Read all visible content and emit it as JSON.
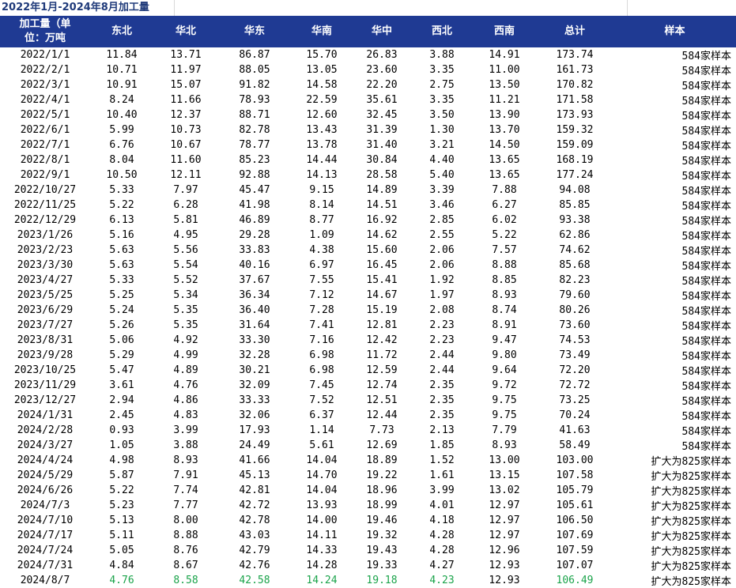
{
  "title": "2022年1月-2024年8月加工量",
  "headers": [
    "加工量（单位：万吨",
    "东北",
    "华北",
    "华东",
    "华南",
    "华中",
    "西北",
    "西南",
    "总计",
    "样本"
  ],
  "header_line1": "加工量（单",
  "header_line2": "位：万吨",
  "rows": [
    [
      "2022/1/1",
      "11.84",
      "13.71",
      "86.87",
      "15.70",
      "26.83",
      "3.88",
      "14.91",
      "173.74",
      "584家样本"
    ],
    [
      "2022/2/1",
      "10.71",
      "11.97",
      "88.05",
      "13.05",
      "23.60",
      "3.35",
      "11.00",
      "161.73",
      "584家样本"
    ],
    [
      "2022/3/1",
      "10.91",
      "15.07",
      "91.82",
      "14.58",
      "22.20",
      "2.75",
      "13.50",
      "170.82",
      "584家样本"
    ],
    [
      "2022/4/1",
      "8.24",
      "11.66",
      "78.93",
      "22.59",
      "35.61",
      "3.35",
      "11.21",
      "171.58",
      "584家样本"
    ],
    [
      "2022/5/1",
      "10.40",
      "12.37",
      "88.71",
      "12.60",
      "32.45",
      "3.50",
      "13.90",
      "173.93",
      "584家样本"
    ],
    [
      "2022/6/1",
      "5.99",
      "10.73",
      "82.78",
      "13.43",
      "31.39",
      "1.30",
      "13.70",
      "159.32",
      "584家样本"
    ],
    [
      "2022/7/1",
      "6.76",
      "10.67",
      "78.77",
      "13.78",
      "31.40",
      "3.21",
      "14.50",
      "159.09",
      "584家样本"
    ],
    [
      "2022/8/1",
      "8.04",
      "11.60",
      "85.23",
      "14.44",
      "30.84",
      "4.40",
      "13.65",
      "168.19",
      "584家样本"
    ],
    [
      "2022/9/1",
      "10.50",
      "12.11",
      "92.88",
      "14.13",
      "28.58",
      "5.40",
      "13.65",
      "177.24",
      "584家样本"
    ],
    [
      "2022/10/27",
      "5.33",
      "7.97",
      "45.47",
      "9.15",
      "14.89",
      "3.39",
      "7.88",
      "94.08",
      "584家样本"
    ],
    [
      "2022/11/25",
      "5.22",
      "6.28",
      "41.98",
      "8.14",
      "14.51",
      "3.46",
      "6.27",
      "85.85",
      "584家样本"
    ],
    [
      "2022/12/29",
      "6.13",
      "5.81",
      "46.89",
      "8.77",
      "16.92",
      "2.85",
      "6.02",
      "93.38",
      "584家样本"
    ],
    [
      "2023/1/26",
      "5.16",
      "4.95",
      "29.28",
      "1.09",
      "14.62",
      "2.55",
      "5.22",
      "62.86",
      "584家样本"
    ],
    [
      "2023/2/23",
      "5.63",
      "5.56",
      "33.83",
      "4.38",
      "15.60",
      "2.06",
      "7.57",
      "74.62",
      "584家样本"
    ],
    [
      "2023/3/30",
      "5.63",
      "5.54",
      "40.16",
      "6.97",
      "16.45",
      "2.06",
      "8.88",
      "85.68",
      "584家样本"
    ],
    [
      "2023/4/27",
      "5.33",
      "5.52",
      "37.67",
      "7.55",
      "15.41",
      "1.92",
      "8.85",
      "82.23",
      "584家样本"
    ],
    [
      "2023/5/25",
      "5.25",
      "5.34",
      "36.34",
      "7.12",
      "14.67",
      "1.97",
      "8.93",
      "79.60",
      "584家样本"
    ],
    [
      "2023/6/29",
      "5.24",
      "5.35",
      "36.40",
      "7.28",
      "15.19",
      "2.08",
      "8.74",
      "80.26",
      "584家样本"
    ],
    [
      "2023/7/27",
      "5.26",
      "5.35",
      "31.64",
      "7.41",
      "12.81",
      "2.23",
      "8.91",
      "73.60",
      "584家样本"
    ],
    [
      "2023/8/31",
      "5.06",
      "4.92",
      "33.30",
      "7.16",
      "12.42",
      "2.23",
      "9.47",
      "74.53",
      "584家样本"
    ],
    [
      "2023/9/28",
      "5.29",
      "4.99",
      "32.28",
      "6.98",
      "11.72",
      "2.44",
      "9.80",
      "73.49",
      "584家样本"
    ],
    [
      "2023/10/25",
      "5.47",
      "4.89",
      "30.21",
      "6.98",
      "12.59",
      "2.44",
      "9.64",
      "72.20",
      "584家样本"
    ],
    [
      "2023/11/29",
      "3.61",
      "4.76",
      "32.09",
      "7.45",
      "12.74",
      "2.35",
      "9.72",
      "72.72",
      "584家样本"
    ],
    [
      "2023/12/27",
      "2.94",
      "4.86",
      "33.33",
      "7.52",
      "12.51",
      "2.35",
      "9.75",
      "73.25",
      "584家样本"
    ],
    [
      "2024/1/31",
      "2.45",
      "4.83",
      "32.06",
      "6.37",
      "12.44",
      "2.35",
      "9.75",
      "70.24",
      "584家样本"
    ],
    [
      "2024/2/28",
      "0.93",
      "3.99",
      "17.93",
      "1.14",
      "7.73",
      "2.13",
      "7.79",
      "41.63",
      "584家样本"
    ],
    [
      "2024/3/27",
      "1.05",
      "3.88",
      "24.49",
      "5.61",
      "12.69",
      "1.85",
      "8.93",
      "58.49",
      "584家样本"
    ],
    [
      "2024/4/24",
      "4.98",
      "8.93",
      "41.66",
      "14.04",
      "18.89",
      "1.52",
      "13.00",
      "103.00",
      "扩大为825家样本"
    ],
    [
      "2024/5/29",
      "5.87",
      "7.91",
      "45.13",
      "14.70",
      "19.22",
      "1.61",
      "13.15",
      "107.58",
      "扩大为825家样本"
    ],
    [
      "2024/6/26",
      "5.22",
      "7.74",
      "42.81",
      "14.04",
      "18.96",
      "3.99",
      "13.02",
      "105.79",
      "扩大为825家样本"
    ],
    [
      "2024/7/3",
      "5.23",
      "7.77",
      "42.72",
      "13.93",
      "18.99",
      "4.01",
      "12.97",
      "105.61",
      "扩大为825家样本"
    ],
    [
      "2024/7/10",
      "5.13",
      "8.00",
      "42.78",
      "14.00",
      "19.46",
      "4.18",
      "12.97",
      "106.50",
      "扩大为825家样本"
    ],
    [
      "2024/7/17",
      "5.11",
      "8.88",
      "43.03",
      "14.11",
      "19.32",
      "4.28",
      "12.97",
      "107.69",
      "扩大为825家样本"
    ],
    [
      "2024/7/24",
      "5.05",
      "8.76",
      "42.79",
      "14.33",
      "19.43",
      "4.28",
      "12.96",
      "107.59",
      "扩大为825家样本"
    ],
    [
      "2024/7/31",
      "4.84",
      "8.67",
      "42.76",
      "14.28",
      "19.33",
      "4.27",
      "12.93",
      "107.07",
      "扩大为825家样本"
    ],
    [
      "2024/8/7",
      "4.76",
      "8.58",
      "42.58",
      "14.24",
      "19.18",
      "4.23",
      "12.93",
      "106.49",
      "扩大为825家样本"
    ]
  ],
  "highlight_color": "#1aa34a",
  "header_bg": "#1f3a93"
}
